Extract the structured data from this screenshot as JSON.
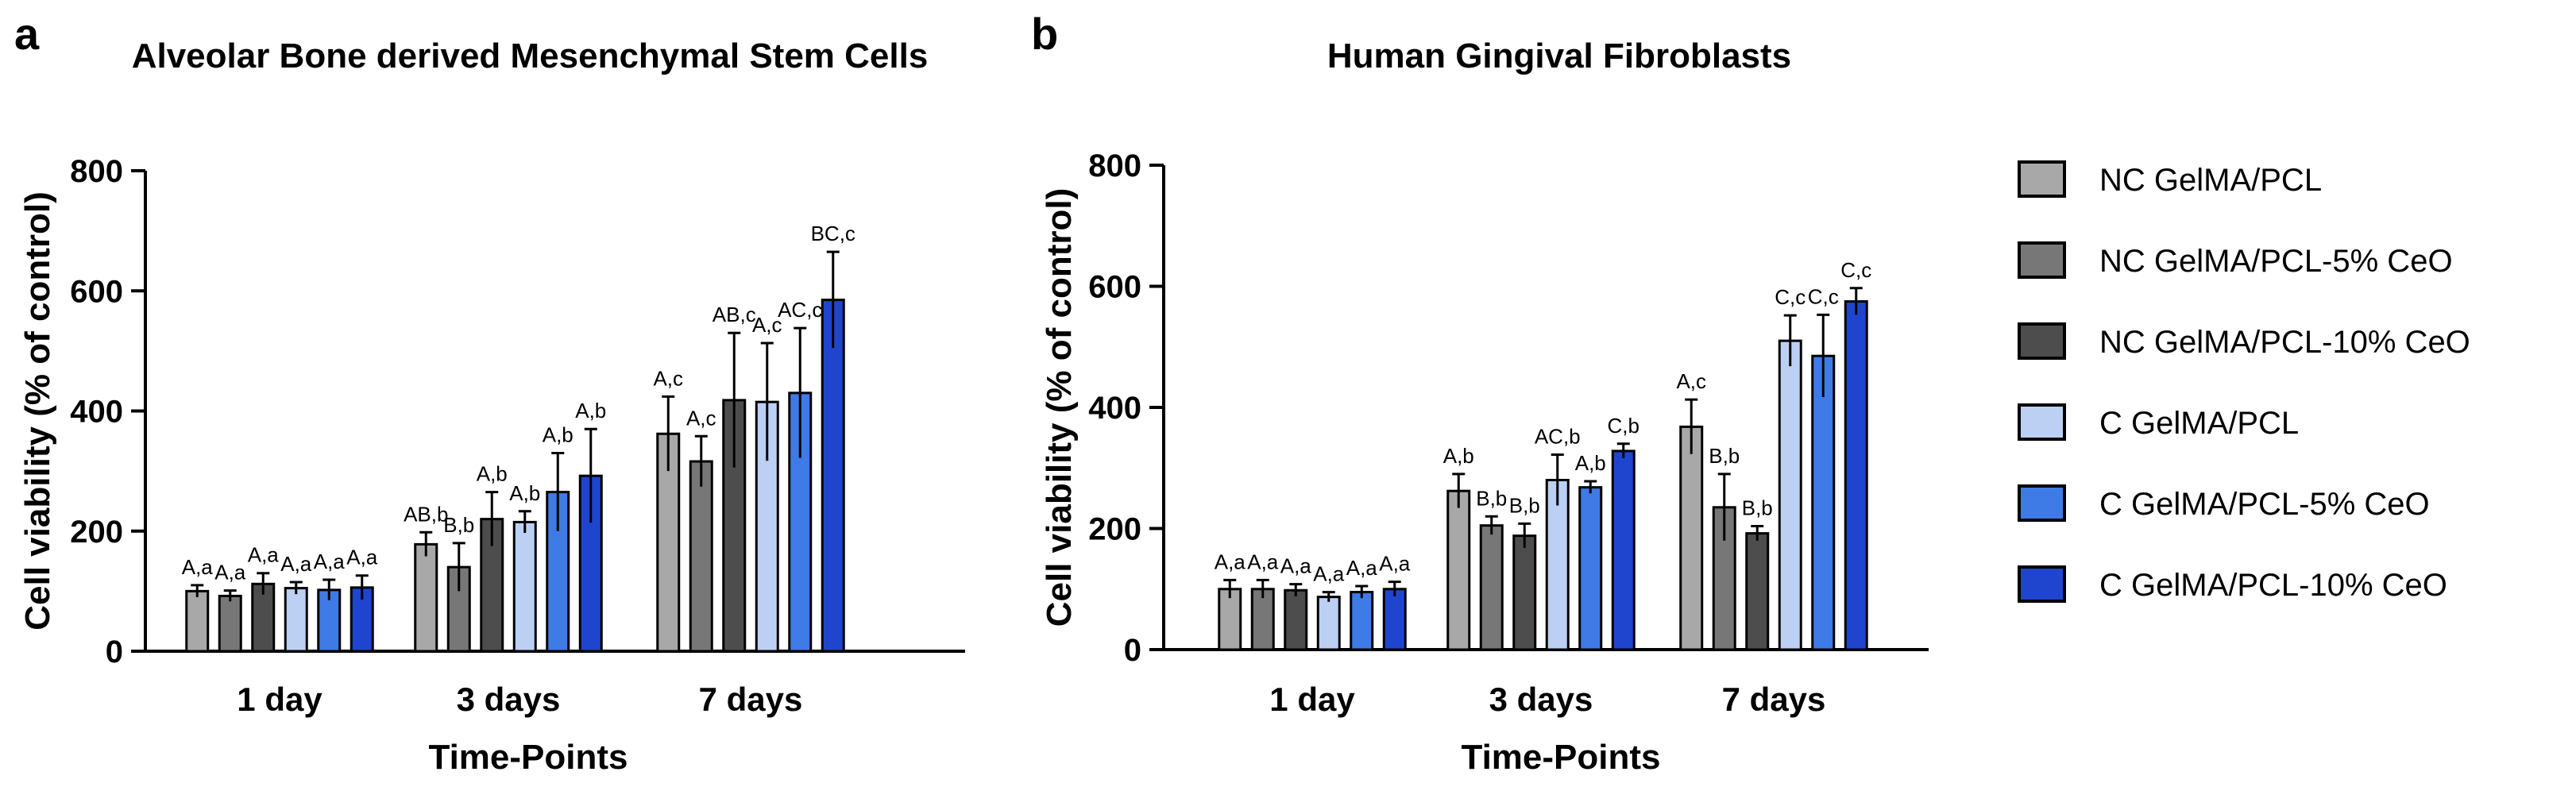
{
  "colors": {
    "NC GelMA/PCL": "#a8a8a8",
    "NC GelMA/PCL-5% CeO": "#777777",
    "NC GelMA/PCL-10% CeO": "#4d4d4d",
    "C GelMA/PCL": "#bcd0f4",
    "C GelMA/PCL-5% CeO": "#3f7be6",
    "C GelMA/PCL-10% CeO": "#1f45cf"
  },
  "legend": {
    "entries": [
      "NC GelMA/PCL",
      "NC GelMA/PCL-5% CeO",
      "NC GelMA/PCL-10% CeO",
      "C GelMA/PCL",
      "C GelMA/PCL-5% CeO",
      "C GelMA/PCL-10% CeO"
    ]
  },
  "chart_data": [
    {
      "panel": "a",
      "type": "bar",
      "title": "Alveolar Bone derived Mesenchymal Stem Cells",
      "xlabel": "Time-Points",
      "ylabel": "Cell viability (% of control)",
      "ylim": [
        0,
        800
      ],
      "yticks": [
        0,
        200,
        400,
        600,
        800
      ],
      "categories": [
        "1 day",
        "3 days",
        "7 days"
      ],
      "series": [
        {
          "name": "NC GelMA/PCL",
          "values": [
            100,
            178,
            362
          ],
          "errors": [
            10,
            20,
            62
          ],
          "labels": [
            "A,a",
            "AB,b",
            "A,c"
          ]
        },
        {
          "name": "NC GelMA/PCL-5% CeO",
          "values": [
            92,
            140,
            316
          ],
          "errors": [
            9,
            40,
            42
          ],
          "labels": [
            "A,a",
            "B,b",
            "A,c"
          ]
        },
        {
          "name": "NC GelMA/PCL-10% CeO",
          "values": [
            112,
            220,
            418
          ],
          "errors": [
            18,
            45,
            112
          ],
          "labels": [
            "A,a",
            "A,b",
            "AB,c"
          ]
        },
        {
          "name": "C GelMA/PCL",
          "values": [
            105,
            215,
            415
          ],
          "errors": [
            10,
            18,
            98
          ],
          "labels": [
            "A,a",
            "A,b",
            "A,c"
          ]
        },
        {
          "name": "C GelMA/PCL-5% CeO",
          "values": [
            102,
            265,
            430
          ],
          "errors": [
            17,
            65,
            108
          ],
          "labels": [
            "A,a",
            "A,b",
            "AC,c"
          ]
        },
        {
          "name": "C GelMA/PCL-10% CeO",
          "values": [
            106,
            292,
            585
          ],
          "errors": [
            20,
            78,
            80
          ],
          "labels": [
            "A,a",
            "A,b",
            "BC,c"
          ]
        }
      ]
    },
    {
      "panel": "b",
      "type": "bar",
      "title": "Human Gingival Fibroblasts",
      "xlabel": "Time-Points",
      "ylabel": "Cell viability (% of control)",
      "ylim": [
        0,
        800
      ],
      "yticks": [
        0,
        200,
        400,
        600,
        800
      ],
      "categories": [
        "1 day",
        "3 days",
        "7 days"
      ],
      "series": [
        {
          "name": "NC GelMA/PCL",
          "values": [
            100,
            262,
            368
          ],
          "errors": [
            15,
            28,
            45
          ],
          "labels": [
            "A,a",
            "A,b",
            "A,c"
          ]
        },
        {
          "name": "NC GelMA/PCL-5% CeO",
          "values": [
            100,
            205,
            235
          ],
          "errors": [
            15,
            15,
            55
          ],
          "labels": [
            "A,a",
            "B,b",
            "B,b"
          ]
        },
        {
          "name": "NC GelMA/PCL-10% CeO",
          "values": [
            98,
            188,
            192
          ],
          "errors": [
            10,
            20,
            12
          ],
          "labels": [
            "A,a",
            "B,b",
            "B,b"
          ]
        },
        {
          "name": "C GelMA/PCL",
          "values": [
            87,
            280,
            510
          ],
          "errors": [
            8,
            42,
            42
          ],
          "labels": [
            "A,a",
            "AC,b",
            "C,c"
          ]
        },
        {
          "name": "C GelMA/PCL-5% CeO",
          "values": [
            95,
            268,
            485
          ],
          "errors": [
            10,
            10,
            68
          ],
          "labels": [
            "A,a",
            "A,b",
            "C,c"
          ]
        },
        {
          "name": "C GelMA/PCL-10% CeO",
          "values": [
            100,
            328,
            575
          ],
          "errors": [
            12,
            12,
            22
          ],
          "labels": [
            "A,a",
            "C,b",
            "C,c"
          ]
        }
      ]
    }
  ]
}
